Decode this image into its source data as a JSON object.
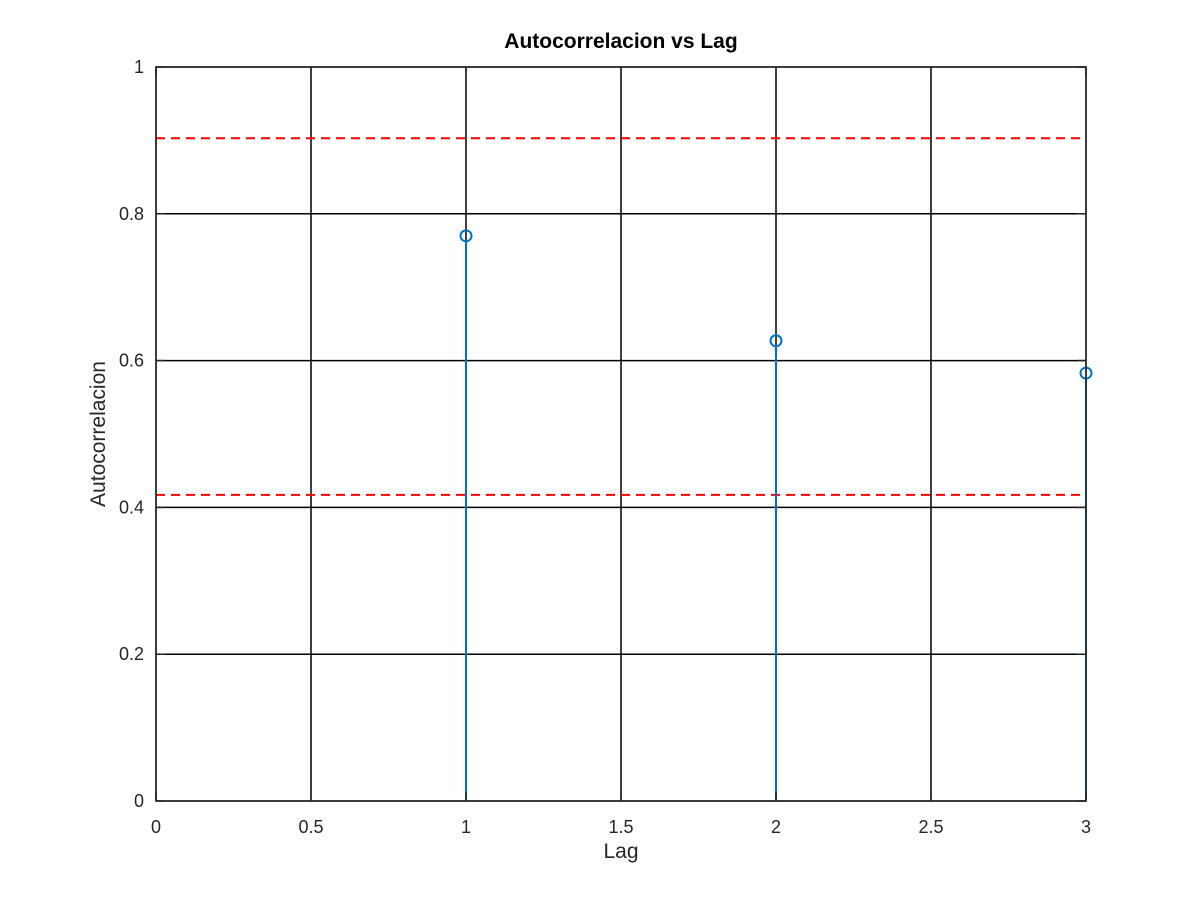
{
  "chart_data": {
    "type": "stem",
    "title": "Autocorrelacion vs Lag",
    "xlabel": "Lag",
    "ylabel": "Autocorrelacion",
    "xlim": [
      0,
      3
    ],
    "ylim": [
      0,
      1
    ],
    "x_ticks": [
      0,
      0.5,
      1,
      1.5,
      2,
      2.5,
      3
    ],
    "y_ticks": [
      0,
      0.2,
      0.4,
      0.6,
      0.8,
      1
    ],
    "x_tick_labels": [
      "0",
      "0.5",
      "1",
      "1.5",
      "2",
      "2.5",
      "3"
    ],
    "y_tick_labels": [
      "0",
      "0.2",
      "0.4",
      "0.6",
      "0.8",
      "1"
    ],
    "grid": true,
    "series": [
      {
        "x": [
          1,
          2,
          3
        ],
        "y": [
          0.77,
          0.627,
          0.583
        ],
        "color": "#0072BD",
        "marker": "circle"
      }
    ],
    "reference_lines": [
      {
        "y": 0.903,
        "color": "#FF0000",
        "style": "dashed"
      },
      {
        "y": 0.417,
        "color": "#FF0000",
        "style": "dashed"
      }
    ],
    "colors": {
      "axis": "#262626",
      "grid": "#000000",
      "stem": "#0072BD",
      "bounds": "#FF0000"
    }
  }
}
